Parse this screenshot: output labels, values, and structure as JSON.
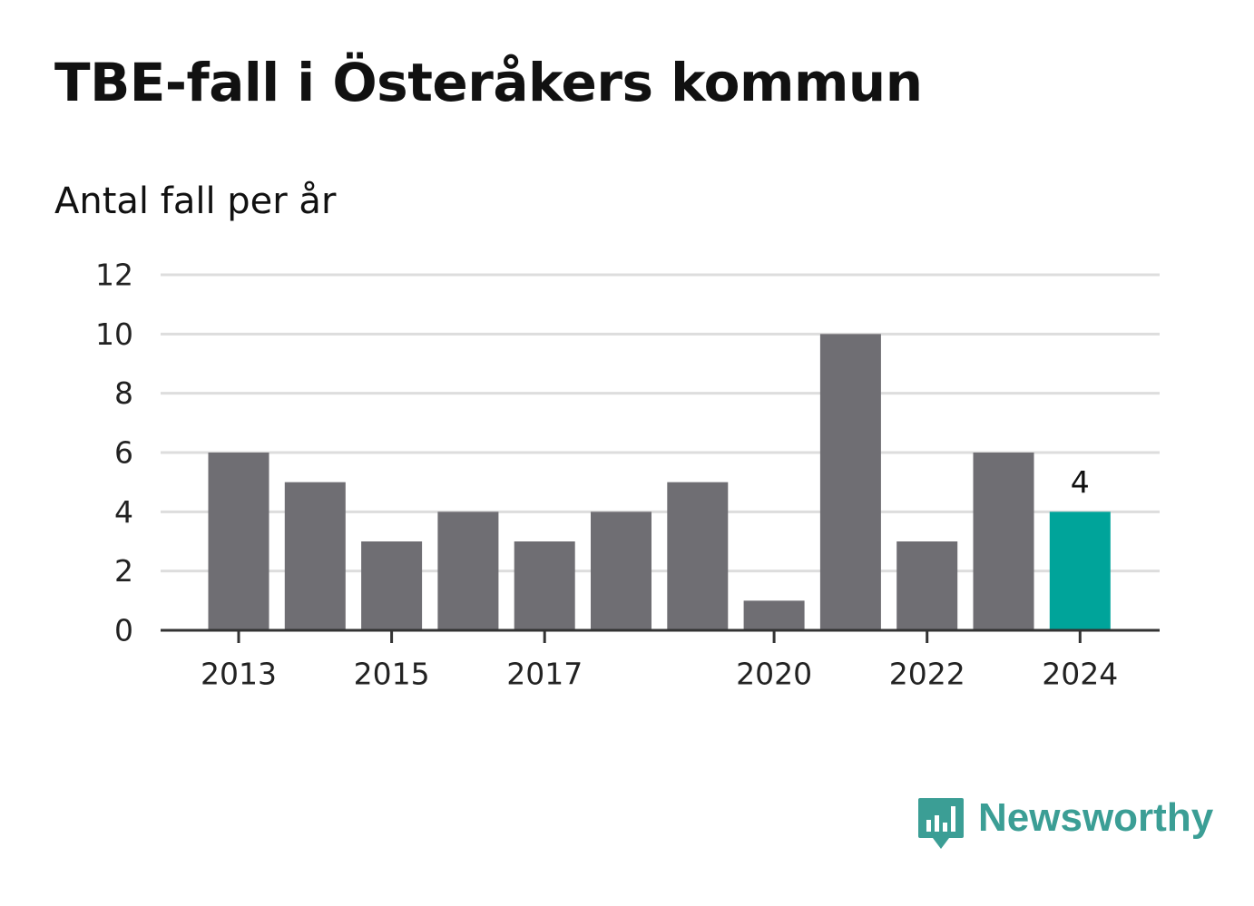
{
  "title": "TBE-fall i Österåkers kommun",
  "subtitle": "Antal fall per år",
  "brand": {
    "name": "Newsworthy",
    "color": "#3b9e95",
    "icon": "newsworthy-speech-bubble-bar-chart-icon"
  },
  "colors": {
    "bar": "#6f6e73",
    "highlight": "#00a49a",
    "grid": "#dddddd",
    "axis": "#333333"
  },
  "chart_data": {
    "type": "bar",
    "categories": [
      "2013",
      "2014",
      "2015",
      "2016",
      "2017",
      "2018",
      "2019",
      "2020",
      "2021",
      "2022",
      "2023",
      "2024"
    ],
    "values": [
      6,
      5,
      3,
      4,
      3,
      4,
      5,
      1,
      10,
      3,
      6,
      4
    ],
    "x_tick_labels": [
      "2013",
      "2015",
      "2017",
      "2020",
      "2022",
      "2024"
    ],
    "y_ticks": [
      0,
      2,
      4,
      6,
      8,
      10,
      12
    ],
    "ylim": [
      0,
      12
    ],
    "grid": true,
    "highlight_category": "2024",
    "annotations": [
      {
        "category": "2024",
        "text": "4"
      }
    ],
    "title": "TBE-fall i Österåkers kommun",
    "subtitle": "Antal fall per år",
    "xlabel": "",
    "ylabel": ""
  }
}
